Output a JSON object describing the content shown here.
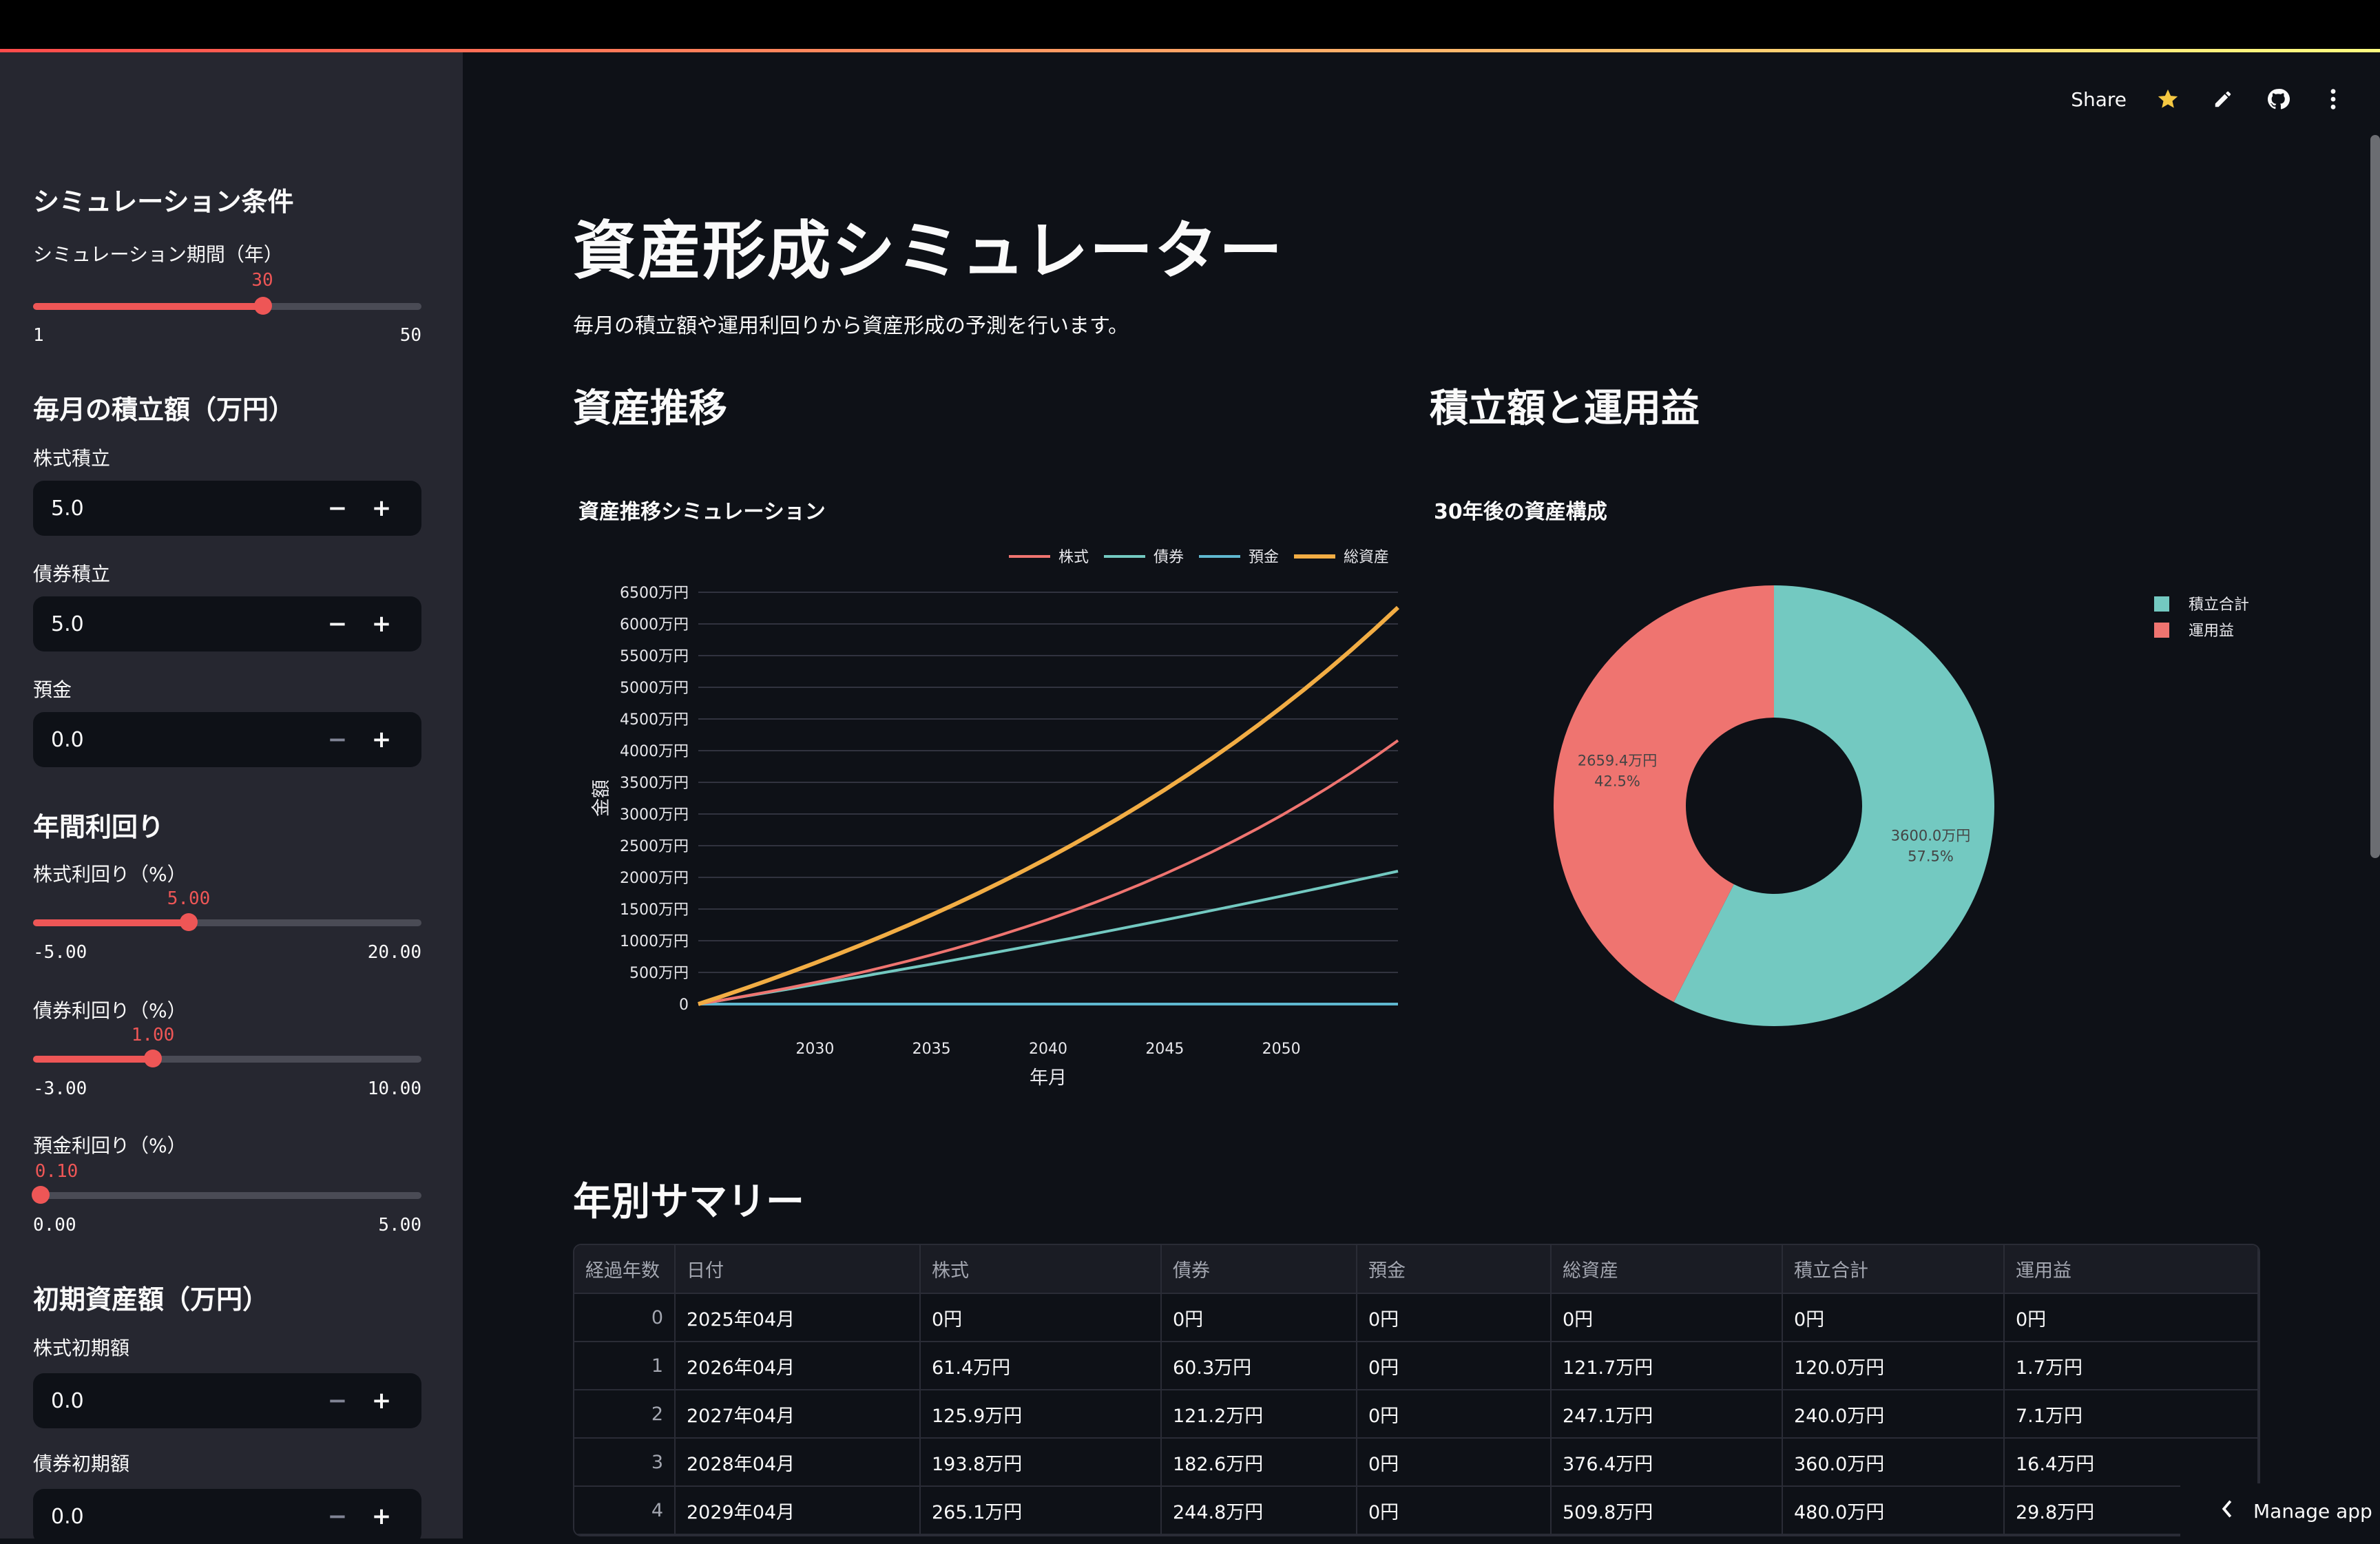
{
  "header": {
    "share_label": "Share",
    "icons": [
      "star-icon",
      "pencil-icon",
      "github-icon",
      "more-vertical-icon"
    ]
  },
  "sidebar": {
    "section1_title": "シミュレーション条件",
    "period": {
      "label": "シミュレーション期間（年）",
      "value": "30",
      "min": "1",
      "max": "50",
      "fill_pct": 59.2
    },
    "section2_title": "毎月の積立額（万円）",
    "stock_monthly": {
      "label": "株式積立",
      "value": "5.0"
    },
    "bond_monthly": {
      "label": "債券積立",
      "value": "5.0"
    },
    "deposit_monthly": {
      "label": "預金",
      "value": "0.0"
    },
    "section3_title": "年間利回り",
    "stock_rate": {
      "label": "株式利回り（%）",
      "value": "5.00",
      "min": "-5.00",
      "max": "20.00",
      "fill_pct": 40
    },
    "bond_rate": {
      "label": "債券利回り（%）",
      "value": "1.00",
      "min": "-3.00",
      "max": "10.00",
      "fill_pct": 30.8
    },
    "deposit_rate": {
      "label": "預金利回り（%）",
      "value": "0.10",
      "min": "0.00",
      "max": "5.00",
      "fill_pct": 2
    },
    "section4_title": "初期資産額（万円）",
    "stock_initial": {
      "label": "株式初期額",
      "value": "0.0"
    },
    "bond_initial": {
      "label": "債券初期額",
      "value": "0.0"
    },
    "minus": "−",
    "plus": "+"
  },
  "main": {
    "title": "資産形成シミュレーター",
    "subtitle": "毎月の積立額や運用利回りから資産形成の予測を行います。",
    "section_asset": "資産推移",
    "section_pie": "積立額と運用益",
    "section_table": "年別サマリー",
    "manage_app": "Manage app"
  },
  "colors": {
    "accent": "#ff4b4b",
    "stock": "#ef7470",
    "bond": "#73c9c1",
    "deposit": "#5fb8d0",
    "total": "#f2ad44"
  },
  "chart_data": [
    {
      "type": "line",
      "title": "資産推移シミュレーション",
      "xlabel": "年月",
      "ylabel": "金額",
      "x": [
        2025,
        2026,
        2027,
        2028,
        2029,
        2030,
        2031,
        2032,
        2033,
        2034,
        2035,
        2036,
        2037,
        2038,
        2039,
        2040,
        2041,
        2042,
        2043,
        2044,
        2045,
        2046,
        2047,
        2048,
        2049,
        2050,
        2051,
        2052,
        2053,
        2054,
        2055
      ],
      "xticks": [
        "2030",
        "2035",
        "2040",
        "2045",
        "2050"
      ],
      "yticks": [
        "0",
        "500万円",
        "1000万円",
        "1500万円",
        "2000万円",
        "2500万円",
        "3000万円",
        "3500万円",
        "4000万円",
        "4500万円",
        "5000万円",
        "5500万円",
        "6000万円",
        "6500万円"
      ],
      "ylim": [
        0,
        6500
      ],
      "grid": true,
      "legend_position": "top-right",
      "series": [
        {
          "name": "株式",
          "color": "#ef7470",
          "values": [
            0,
            61.4,
            125.9,
            193.8,
            265.1,
            340.0,
            418.8,
            501.6,
            588.7,
            680.2,
            776.4,
            877.5,
            983.8,
            1095.6,
            1213.0,
            1336.4,
            1466.2,
            1602.6,
            1746.0,
            1897.1,
            2055.2,
            2221.7,
            2396.8,
            2580.8,
            2774.2,
            2977.6,
            3191.3,
            3416.0,
            3652.1,
            3900.4,
            4161.3
          ]
        },
        {
          "name": "債券",
          "color": "#73c9c1",
          "values": [
            0,
            60.3,
            121.2,
            182.6,
            244.8,
            307.5,
            370.9,
            434.9,
            499.5,
            564.8,
            630.8,
            697.4,
            764.7,
            832.6,
            901.2,
            970.6,
            1040.6,
            1111.3,
            1182.8,
            1254.9,
            1327.8,
            1401.4,
            1475.8,
            1550.9,
            1626.7,
            1703.4,
            1780.8,
            1858.9,
            1937.9,
            2017.6,
            2098.2
          ]
        },
        {
          "name": "預金",
          "color": "#5fb8d0",
          "values": [
            0,
            0,
            0,
            0,
            0,
            0,
            0,
            0,
            0,
            0,
            0,
            0,
            0,
            0,
            0,
            0,
            0,
            0,
            0,
            0,
            0,
            0,
            0,
            0,
            0,
            0,
            0,
            0,
            0,
            0,
            0
          ]
        },
        {
          "name": "総資産",
          "color": "#f2ad44",
          "values": [
            0,
            121.7,
            247.1,
            376.4,
            509.9,
            647.5,
            789.7,
            936.5,
            1088.2,
            1245.0,
            1407.2,
            1574.9,
            1748.5,
            1928.2,
            2114.2,
            2307.0,
            2506.8,
            2713.9,
            2928.8,
            3152.0,
            3383.0,
            3623.1,
            3872.6,
            4131.7,
            4400.9,
            4681.0,
            4972.1,
            5274.9,
            5590.0,
            5918.0,
            6259.4
          ]
        }
      ]
    },
    {
      "type": "pie",
      "title": "30年後の資産構成",
      "hole": 0.4,
      "legend_position": "right",
      "labels": [
        "積立合計",
        "運用益"
      ],
      "values": [
        3600.0,
        2659.4
      ],
      "percent": [
        57.5,
        42.5
      ],
      "text": [
        "3600.0万円",
        "2659.4万円"
      ],
      "pct_text": [
        "57.5%",
        "42.5%"
      ],
      "colors": [
        "#73c9c1",
        "#ef7470"
      ]
    }
  ],
  "table": {
    "columns": [
      "経過年数",
      "日付",
      "株式",
      "債券",
      "預金",
      "総資産",
      "積立合計",
      "運用益"
    ],
    "rows": [
      [
        "0",
        "2025年04月",
        "0円",
        "0円",
        "0円",
        "0円",
        "0円",
        "0円"
      ],
      [
        "1",
        "2026年04月",
        "61.4万円",
        "60.3万円",
        "0円",
        "121.7万円",
        "120.0万円",
        "1.7万円"
      ],
      [
        "2",
        "2027年04月",
        "125.9万円",
        "121.2万円",
        "0円",
        "247.1万円",
        "240.0万円",
        "7.1万円"
      ],
      [
        "3",
        "2028年04月",
        "193.8万円",
        "182.6万円",
        "0円",
        "376.4万円",
        "360.0万円",
        "16.4万円"
      ],
      [
        "4",
        "2029年04月",
        "265.1万円",
        "244.8万円",
        "0円",
        "509.8万円",
        "480.0万円",
        "29.8万円"
      ]
    ]
  }
}
